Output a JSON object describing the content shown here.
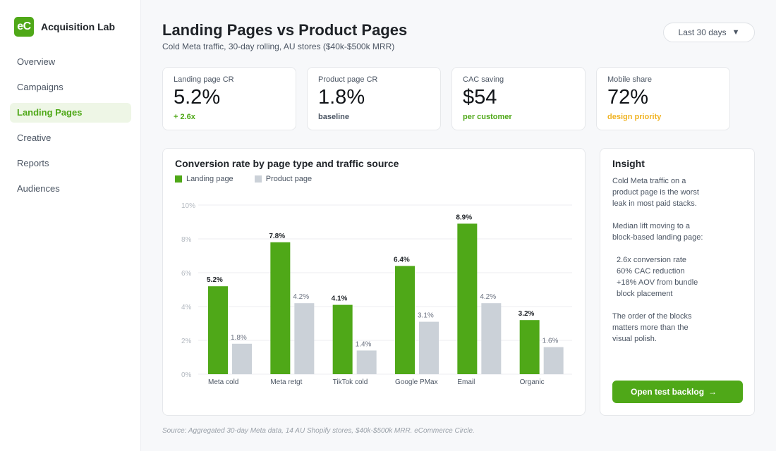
{
  "app": {
    "logo_text": "eC",
    "name": "Acquisition Lab"
  },
  "nav": [
    {
      "label": "Overview",
      "active": false
    },
    {
      "label": "Campaigns",
      "active": false
    },
    {
      "label": "Landing Pages",
      "active": true
    },
    {
      "label": "Creative",
      "active": false
    },
    {
      "label": "Reports",
      "active": false
    },
    {
      "label": "Audiences",
      "active": false
    }
  ],
  "header": {
    "title": "Landing Pages vs Product Pages",
    "subtitle": "Cold Meta traffic, 30-day rolling, AU stores ($40k-$500k MRR)",
    "range_label": "Last 30 days",
    "range_icon": "chevron-down-icon"
  },
  "kpis": [
    {
      "label": "Landing page CR",
      "value": "5.2%",
      "note": "+ 2.6x",
      "note_color": "#4fa818"
    },
    {
      "label": "Product page CR",
      "value": "1.8%",
      "note": "baseline",
      "note_color": "#4b5563"
    },
    {
      "label": "CAC saving",
      "value": "$54",
      "note": "per customer",
      "note_color": "#4fa818"
    },
    {
      "label": "Mobile share",
      "value": "72%",
      "note": "design priority",
      "note_color": "#f0b323"
    }
  ],
  "chart_card": {
    "title": "Conversion rate by page type and traffic source"
  },
  "chart_data": {
    "type": "bar",
    "title": "Conversion rate by page type and traffic source",
    "categories": [
      "Meta cold",
      "Meta retgt",
      "TikTok cold",
      "Google PMax",
      "Email",
      "Organic"
    ],
    "series": [
      {
        "name": "Landing page",
        "color": "#4fa818",
        "values": [
          5.2,
          7.8,
          4.1,
          6.4,
          8.9,
          3.2
        ],
        "labels": [
          "5.2%",
          "7.8%",
          "4.1%",
          "6.4%",
          "8.9%",
          "3.2%"
        ]
      },
      {
        "name": "Product page",
        "color": "#cbd1d8",
        "values": [
          1.8,
          4.2,
          1.4,
          3.1,
          4.2,
          1.6
        ],
        "labels": [
          "1.8%",
          "4.2%",
          "1.4%",
          "3.1%",
          "4.2%",
          "1.6%"
        ]
      }
    ],
    "y_ticks": [
      0,
      2,
      4,
      6,
      8,
      10
    ],
    "y_tick_labels": [
      "0%",
      "2%",
      "4%",
      "6%",
      "8%",
      "10%"
    ],
    "ylim": [
      0,
      10
    ],
    "grid": true,
    "legend": "top-left"
  },
  "insight": {
    "title": "Insight",
    "para1": "Cold Meta traffic on a\nproduct page is the worst\nleak in most paid stacks.",
    "para2": "Median lift moving to a\nblock-based landing page:",
    "list": [
      "2.6x conversion rate",
      "60% CAC reduction",
      "+18% AOV from bundle",
      "block placement"
    ],
    "para3": "The order of the blocks\nmatters more than the\nvisual polish.",
    "cta_label": "Open test backlog",
    "cta_icon": "arrow-right-icon"
  },
  "footer": {
    "source": "Source: Aggregated 30-day Meta data, 14 AU Shopify stores, $40k-$500k MRR. eCommerce Circle."
  }
}
